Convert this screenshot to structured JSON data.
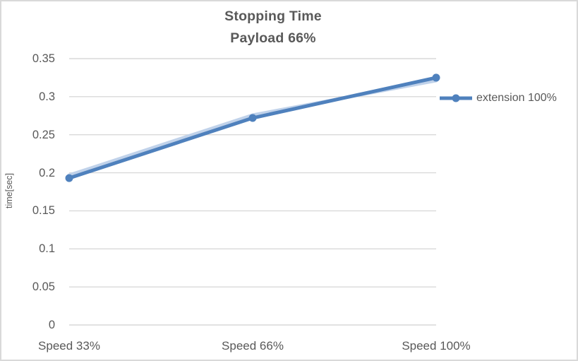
{
  "chart": {
    "title_line1": "Stopping Time",
    "title_line2": "Payload 66%",
    "y_axis_label": "time[sec]",
    "legend_label": "extension 100%"
  },
  "chart_data": {
    "type": "line",
    "title": "Stopping Time — Payload 66%",
    "categories": [
      "Speed 33%",
      "Speed 66%",
      "Speed 100%"
    ],
    "series": [
      {
        "name": "extension 100%",
        "values": [
          0.193,
          0.272,
          0.325
        ]
      }
    ],
    "shadow_values": [
      0.197,
      0.276,
      0.321
    ],
    "xlabel": "",
    "ylabel": "time[sec]",
    "ylim": [
      0,
      0.35
    ],
    "yticks": [
      0,
      0.05,
      0.1,
      0.15,
      0.2,
      0.25,
      0.3,
      0.35
    ],
    "ytick_labels": [
      "0",
      "0.05",
      "0.1",
      "0.15",
      "0.2",
      "0.25",
      "0.3",
      "0.35"
    ],
    "grid": true,
    "legend_position": "right",
    "colors": {
      "series": "#4F81BD",
      "series_shadow": "#BDD0E9",
      "gridline": "#D9D9D9",
      "text": "#595959",
      "border": "#D9D9D9"
    }
  }
}
